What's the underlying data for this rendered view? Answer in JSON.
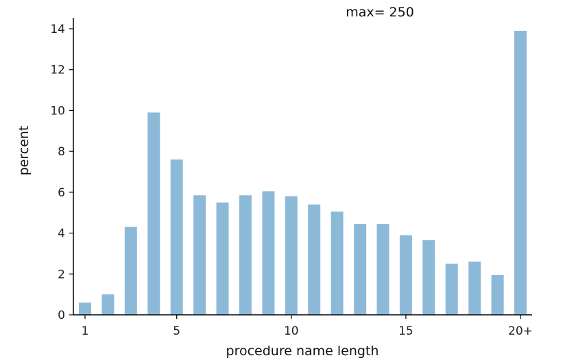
{
  "chart_data": {
    "type": "bar",
    "annotation": "max= 250",
    "xlabel": "procedure name length",
    "ylabel": "percent",
    "categories": [
      "1",
      "2",
      "3",
      "4",
      "5",
      "6",
      "7",
      "8",
      "9",
      "10",
      "11",
      "12",
      "13",
      "14",
      "15",
      "16",
      "17",
      "18",
      "19",
      "20+"
    ],
    "x_tick_labels": [
      "1",
      "5",
      "10",
      "15",
      "20+"
    ],
    "x_tick_positions": [
      1,
      5,
      10,
      15,
      20
    ],
    "values": [
      0.6,
      1.0,
      4.3,
      9.9,
      7.6,
      5.85,
      5.5,
      5.85,
      6.05,
      5.8,
      5.4,
      5.05,
      4.45,
      4.45,
      3.9,
      3.65,
      2.5,
      2.6,
      1.95,
      13.9
    ],
    "ylim": [
      0,
      14.5
    ],
    "y_ticks": [
      0,
      2,
      4,
      6,
      8,
      10,
      12,
      14
    ],
    "bar_color": "#8db9d9",
    "grid": false,
    "legend": "none"
  }
}
